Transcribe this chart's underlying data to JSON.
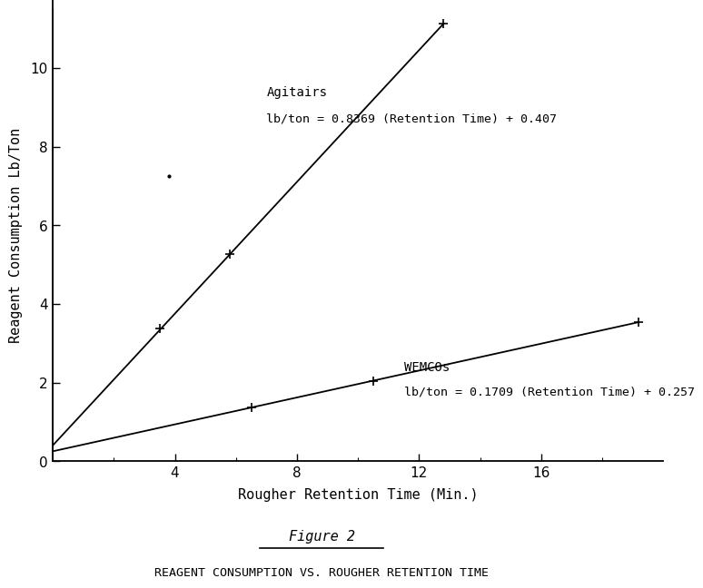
{
  "title": "Figure 2",
  "caption": "REAGENT CONSUMPTION VS. ROUGHER RETENTION TIME",
  "ylabel": "Reagent Consumption Lb/Ton",
  "xlabel": "Rougher Retention Time (Min.)",
  "xlim": [
    0,
    20
  ],
  "ylim": [
    0,
    11.5
  ],
  "xticks": [
    4,
    8,
    12,
    16
  ],
  "yticks": [
    0,
    2,
    4,
    6,
    8,
    10
  ],
  "agitairs": {
    "slope": 0.8369,
    "intercept": 0.407,
    "x_start": 0.0,
    "x_end": 12.8,
    "data_points": [
      [
        3.5,
        3.37
      ],
      [
        5.8,
        5.26
      ],
      [
        12.8,
        11.12
      ]
    ],
    "label": "Agitairs",
    "equation": "lb/ton = 0.8369 (Retention Time) + 0.407",
    "ann_x": 7.0,
    "ann_y": 9.55,
    "eq_x": 7.0,
    "eq_y": 8.85
  },
  "wemcos": {
    "slope": 0.1709,
    "intercept": 0.257,
    "x_start": 0.0,
    "x_end": 19.2,
    "data_points": [
      [
        6.5,
        1.37
      ],
      [
        10.5,
        2.05
      ],
      [
        19.2,
        3.54
      ]
    ],
    "label": "WEMCOs",
    "equation": "lb/ton = 0.1709 (Retention Time) + 0.257",
    "ann_x": 11.5,
    "ann_y": 2.55,
    "eq_x": 11.5,
    "eq_y": 1.92
  },
  "line_color": "#000000",
  "bg_color": "#ffffff",
  "font_family": "DejaVu Sans Mono",
  "tick_marker_size": 5
}
